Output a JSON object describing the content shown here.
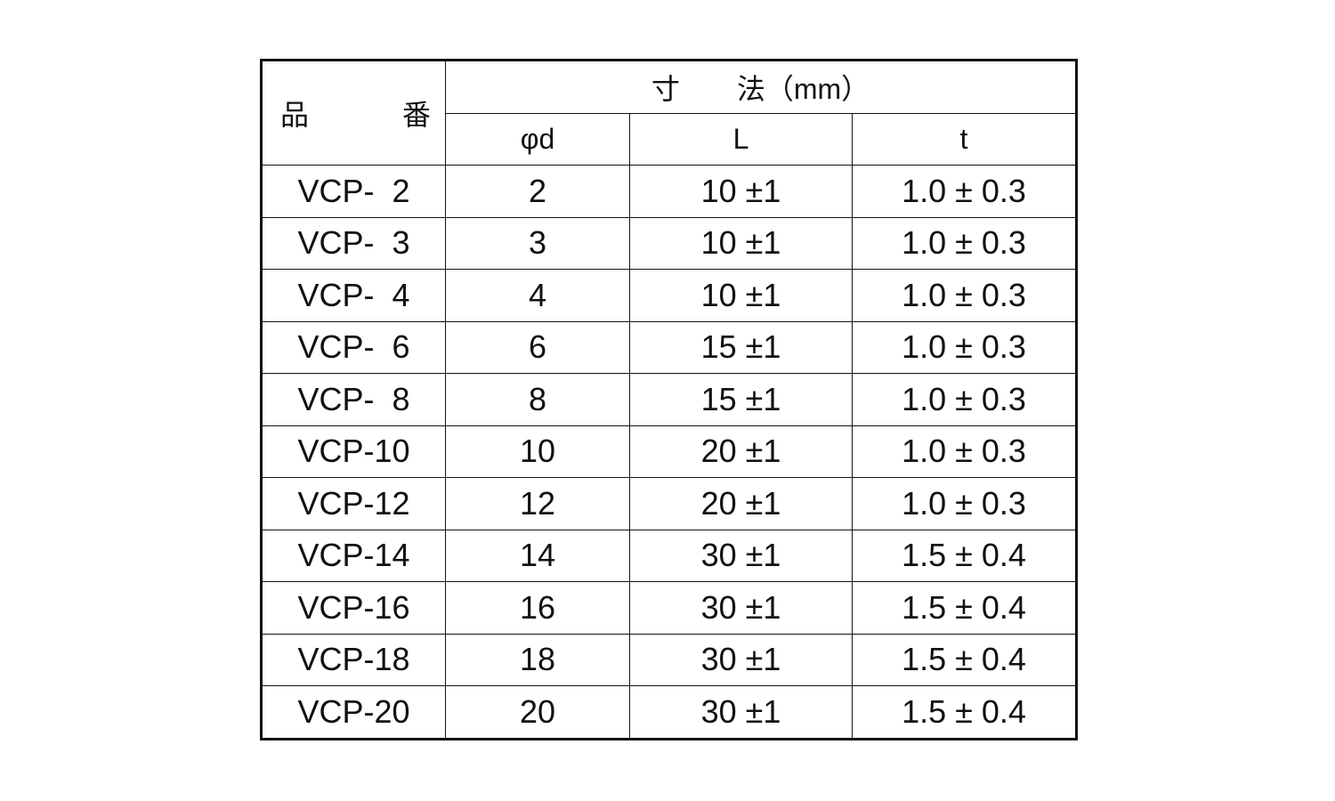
{
  "table": {
    "header": {
      "part_no": "品　　番",
      "dimensions": "寸　　法（mm）",
      "columns": [
        "φd",
        "L",
        "t"
      ]
    },
    "rows": [
      [
        "VCP-  2",
        "2",
        "10 ±1",
        "1.0 ± 0.3"
      ],
      [
        "VCP-  3",
        "3",
        "10 ±1",
        "1.0 ± 0.3"
      ],
      [
        "VCP-  4",
        "4",
        "10 ±1",
        "1.0 ± 0.3"
      ],
      [
        "VCP-  6",
        "6",
        "15 ±1",
        "1.0 ± 0.3"
      ],
      [
        "VCP-  8",
        "8",
        "15 ±1",
        "1.0 ± 0.3"
      ],
      [
        "VCP-10",
        "10",
        "20 ±1",
        "1.0 ± 0.3"
      ],
      [
        "VCP-12",
        "12",
        "20 ±1",
        "1.0 ± 0.3"
      ],
      [
        "VCP-14",
        "14",
        "30 ±1",
        "1.5 ± 0.4"
      ],
      [
        "VCP-16",
        "16",
        "30 ±1",
        "1.5 ± 0.4"
      ],
      [
        "VCP-18",
        "18",
        "30 ±1",
        "1.5 ± 0.4"
      ],
      [
        "VCP-20",
        "20",
        "30 ±1",
        "1.5 ± 0.4"
      ]
    ]
  }
}
